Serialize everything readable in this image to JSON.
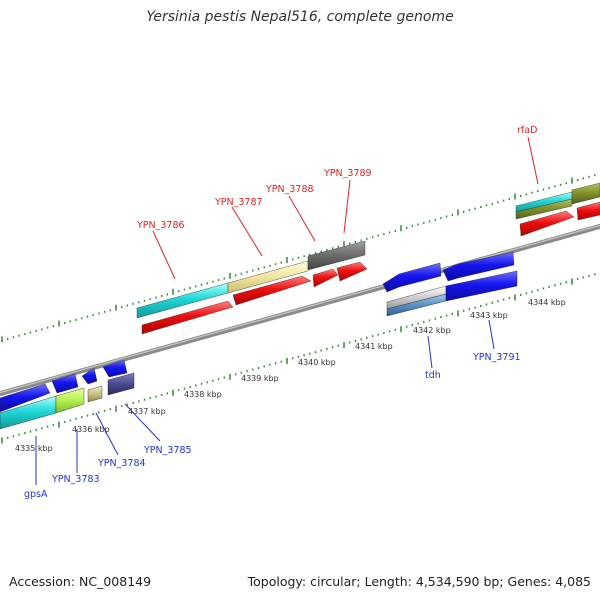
{
  "header": {
    "title": "Yersinia pestis Nepal516, complete genome"
  },
  "footer": {
    "accession": "Accession: NC_008149",
    "summary": "Topology: circular; Length: 4,534,590 bp; Genes: 4,085"
  },
  "colors": {
    "backbone": "#8a8a8a",
    "tick_major": "#2e8b2e",
    "tick_minor": "#2e8b2e",
    "forward_label": "#dd2222",
    "reverse_label": "#2233cc",
    "scale_label": "#333333"
  },
  "scale_labels": [
    "4335 kbp",
    "4336 kbp",
    "4337 kbp",
    "4338 kbp",
    "4339 kbp",
    "4340 kbp",
    "4341 kbp",
    "4342 kbp",
    "4343 kbp",
    "4344 kbp"
  ],
  "forward_gene_labels": [
    "YPN_3786",
    "YPN_3787",
    "YPN_3788",
    "YPN_3789",
    "rfaD"
  ],
  "reverse_gene_labels": [
    "gpsA",
    "YPN_3783",
    "YPN_3784",
    "YPN_3785",
    "tdh",
    "YPN_3791"
  ]
}
